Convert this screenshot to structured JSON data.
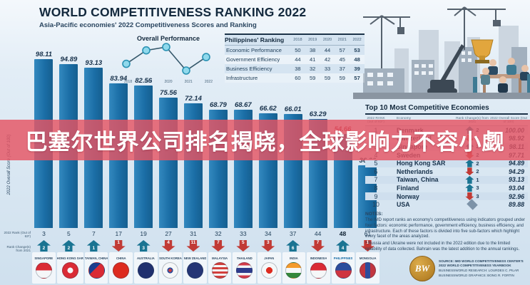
{
  "header": {
    "title": "WORLD COMPETITIVENESS RANKING 2022",
    "subtitle": "Asia-Pacific economies' 2022 Competitiveness Scores and Ranking"
  },
  "overlay_banner": {
    "text": "巴塞尔世界公司排名揭晓，全球影响力不容小觑",
    "background_color": "#e55463",
    "text_color": "#ffffff"
  },
  "mini_chart": {
    "title": "Overall Performance",
    "years": [
      "2018",
      "2019",
      "2020",
      "2021",
      "2022"
    ],
    "values": [
      50,
      46,
      45,
      52,
      48
    ]
  },
  "ph_table": {
    "title": "Philippines' Ranking",
    "years": [
      "2018",
      "2019",
      "2020",
      "2021",
      "2022"
    ],
    "rows": [
      {
        "label": "Economic Performance",
        "values": [
          50,
          38,
          44,
          57,
          53
        ]
      },
      {
        "label": "Government Efficiency",
        "values": [
          44,
          41,
          42,
          45,
          48
        ]
      },
      {
        "label": "Business Efficiency",
        "values": [
          38,
          32,
          33,
          37,
          39
        ]
      },
      {
        "label": "Infrastructure",
        "values": [
          60,
          59,
          59,
          59,
          57
        ]
      }
    ]
  },
  "bar_chart": {
    "ylabel": "2022 Overall Score (Out of 100)",
    "rank_row_label": "2022 Rank (Out of 63*)",
    "change_row_label": "Rank Change(s) from 2021",
    "bar_color": "#1b6ea6",
    "economies": [
      {
        "name": "SINGAPORE",
        "score": "98.11",
        "rank": 3,
        "change": 2,
        "dir": "up",
        "flag": "sg"
      },
      {
        "name": "HONG KONG SAR",
        "score": "94.89",
        "rank": 5,
        "change": 2,
        "dir": "up",
        "flag": "hk"
      },
      {
        "name": "TAIWAN, CHINA",
        "score": "93.13",
        "rank": 7,
        "change": 1,
        "dir": "up",
        "flag": "tw"
      },
      {
        "name": "CHINA",
        "score": "83.94",
        "rank": 17,
        "change": 1,
        "dir": "down",
        "flag": "cn"
      },
      {
        "name": "AUSTRALIA",
        "score": "82.56",
        "rank": 19,
        "change": 3,
        "dir": "up",
        "flag": "au"
      },
      {
        "name": "SOUTH KOREA",
        "score": "75.56",
        "rank": 27,
        "change": 4,
        "dir": "down",
        "flag": "kr"
      },
      {
        "name": "NEW ZEALAND",
        "score": "72.14",
        "rank": 31,
        "change": 11,
        "dir": "down",
        "flag": "nz"
      },
      {
        "name": "MALAYSIA",
        "score": "68.79",
        "rank": 32,
        "change": 7,
        "dir": "down",
        "flag": "my"
      },
      {
        "name": "THAILAND",
        "score": "68.67",
        "rank": 33,
        "change": 5,
        "dir": "down",
        "flag": "th"
      },
      {
        "name": "JAPAN",
        "score": "66.62",
        "rank": 34,
        "change": 3,
        "dir": "down",
        "flag": "jp"
      },
      {
        "name": "INDIA",
        "score": "66.01",
        "rank": 37,
        "change": 6,
        "dir": "up",
        "flag": "in"
      },
      {
        "name": "INDONESIA",
        "score": "63.29",
        "rank": 44,
        "change": 7,
        "dir": "down",
        "flag": "id"
      },
      {
        "name": "PHILIPPINES",
        "score": "54.66",
        "rank": 48,
        "change": 4,
        "dir": "up",
        "flag": "ph",
        "highlight": true
      },
      {
        "name": "MONGOLIA",
        "score": "36.20",
        "rank": 61,
        "change": 1,
        "dir": "down",
        "flag": "mn"
      }
    ]
  },
  "top10": {
    "title": "Top 10 Most Competitive Economies",
    "col_headers": [
      "2022 RANK (out of 63*)",
      "Economy",
      "Rank Change(s) from 2021",
      "2022 Overall Score (Out of 100)"
    ],
    "rows": [
      {
        "rank": 1,
        "economy": "Denmark",
        "change": 2,
        "dir": "up",
        "score": "100.00"
      },
      {
        "rank": 2,
        "economy": "Switzerland",
        "change": 1,
        "dir": "down",
        "score": "98.92"
      },
      {
        "rank": 3,
        "economy": "Singapore",
        "change": 2,
        "dir": "up",
        "score": "98.11"
      },
      {
        "rank": 4,
        "economy": "Sweden",
        "change": 2,
        "dir": "down",
        "score": "97.71"
      },
      {
        "rank": 5,
        "economy": "Hong Kong SAR",
        "change": 2,
        "dir": "up",
        "score": "94.89"
      },
      {
        "rank": 6,
        "economy": "Netherlands",
        "change": 2,
        "dir": "down",
        "score": "94.29"
      },
      {
        "rank": 7,
        "economy": "Taiwan, China",
        "change": 1,
        "dir": "up",
        "score": "93.13"
      },
      {
        "rank": 8,
        "economy": "Finland",
        "change": 3,
        "dir": "up",
        "score": "93.04"
      },
      {
        "rank": 9,
        "economy": "Norway",
        "change": 3,
        "dir": "down",
        "score": "92.96"
      },
      {
        "rank": 10,
        "economy": "USA",
        "change": 0,
        "dir": "same",
        "score": "89.88"
      }
    ]
  },
  "notes": {
    "heading": "NOTES:",
    "p1": "The IMD report ranks an economy's competitiveness using indicators grouped under four factors: economic performance, government efficiency, business efficiency, and infrastructure. Each of these factors is divided into five sub-factors which highlight every facet of the areas analyzed.",
    "p2": "* Russia and Ukraine were not included in the 2022 edition due to the limited reliability of data collected. Bahrain was the latest addition to the annual rankings."
  },
  "credits": {
    "logo_text": "BW",
    "source_line": "SOURCE: IMD WORLD COMPETITIVENESS CENTER'S 2022 WORLD COMPETITIVENESS YEARBOOK",
    "research_line": "BUSINESSWORLD RESEARCH: LOURDES C. PILAR",
    "graphics_line": "BUSINESSWORLD GRAPHICS: BONG R. FORTIN"
  },
  "chart_data": [
    {
      "type": "bar",
      "title": "Asia-Pacific economies' 2022 Competitiveness Scores and Ranking",
      "ylabel": "2022 Overall Score (Out of 100)",
      "ylim": [
        0,
        100
      ],
      "categories": [
        "Singapore",
        "Hong Kong SAR",
        "Taiwan, China",
        "China",
        "Australia",
        "South Korea",
        "New Zealand",
        "Malaysia",
        "Thailand",
        "Japan",
        "India",
        "Indonesia",
        "Philippines",
        "Mongolia"
      ],
      "values": [
        98.11,
        94.89,
        93.13,
        83.94,
        82.56,
        75.56,
        72.14,
        68.79,
        68.67,
        66.62,
        66.01,
        63.29,
        54.66,
        36.2
      ],
      "ranks_2022": [
        3,
        5,
        7,
        17,
        19,
        27,
        31,
        32,
        33,
        34,
        37,
        44,
        48,
        61
      ],
      "rank_change_from_2021": [
        2,
        2,
        1,
        -1,
        3,
        -4,
        -11,
        -7,
        -5,
        -3,
        6,
        -7,
        4,
        -1
      ]
    },
    {
      "type": "line",
      "title": "Overall Performance",
      "x": [
        "2018",
        "2019",
        "2020",
        "2021",
        "2022"
      ],
      "values": [
        50,
        46,
        45,
        52,
        48
      ],
      "note": "Philippines' overall rank per year; lower rank plotted higher (better)"
    },
    {
      "type": "table",
      "title": "Philippines' Ranking",
      "columns": [
        "Factor",
        "2018",
        "2019",
        "2020",
        "2021",
        "2022"
      ],
      "rows": [
        [
          "Economic Performance",
          50,
          38,
          44,
          57,
          53
        ],
        [
          "Government Efficiency",
          44,
          41,
          42,
          45,
          48
        ],
        [
          "Business Efficiency",
          38,
          32,
          33,
          37,
          39
        ],
        [
          "Infrastructure",
          60,
          59,
          59,
          59,
          57
        ]
      ]
    },
    {
      "type": "table",
      "title": "Top 10 Most Competitive Economies",
      "columns": [
        "2022 RANK (out of 63*)",
        "Economy",
        "Rank Change(s) from 2021",
        "2022 Overall Score (Out of 100)"
      ],
      "rows": [
        [
          1,
          "Denmark",
          "+2",
          "100.00"
        ],
        [
          2,
          "Switzerland",
          "-1",
          "98.92"
        ],
        [
          3,
          "Singapore",
          "+2",
          "98.11"
        ],
        [
          4,
          "Sweden",
          "-2",
          "97.71"
        ],
        [
          5,
          "Hong Kong SAR",
          "+2",
          "94.89"
        ],
        [
          6,
          "Netherlands",
          "-2",
          "94.29"
        ],
        [
          7,
          "Taiwan, China",
          "+1",
          "93.13"
        ],
        [
          8,
          "Finland",
          "+3",
          "93.04"
        ],
        [
          9,
          "Norway",
          "-3",
          "92.96"
        ],
        [
          10,
          "USA",
          "0",
          "89.88"
        ]
      ]
    }
  ]
}
